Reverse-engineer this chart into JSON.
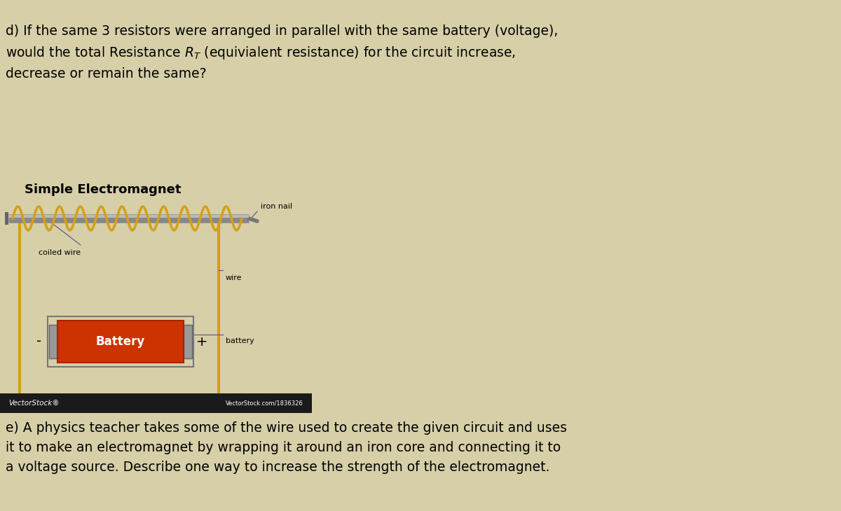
{
  "bg_color": "#d6cfa8",
  "title_d_text": "d) If the same 3 resistors were arranged in parallel with the same battery (voltage),\nwould the total Resistance $R_T$ (equivialent resistance) for the circuit increase,\ndecrease or remain the same?",
  "electromagnet_title": "Simple Electromagnet",
  "label_iron_nail": "iron nail",
  "label_coiled_wire": "coiled wire",
  "label_wire": "wire",
  "label_battery": "battery",
  "label_battery_text": "Battery",
  "label_minus": "-",
  "label_plus": "+",
  "vectorstock_text": "VectorStock®",
  "vectorstock_right": "VectorStock.com/1836326",
  "text_e": "e) A physics teacher takes some of the wire used to create the given circuit and uses\nit to make an electromagnet by wrapping it around an iron core and connecting it to\na voltage source. Describe one way to increase the strength of the electromagnet.",
  "wire_color": "#d4a017",
  "nail_color": "#a0a0a0",
  "battery_red": "#cc3300",
  "battery_gray": "#888888",
  "battery_dark": "#555555",
  "footer_color": "#1a1a1a",
  "line_color": "#555577",
  "font_size_title_d": 13.5,
  "font_size_em_title": 13,
  "font_size_label": 8,
  "font_size_e": 13.5
}
